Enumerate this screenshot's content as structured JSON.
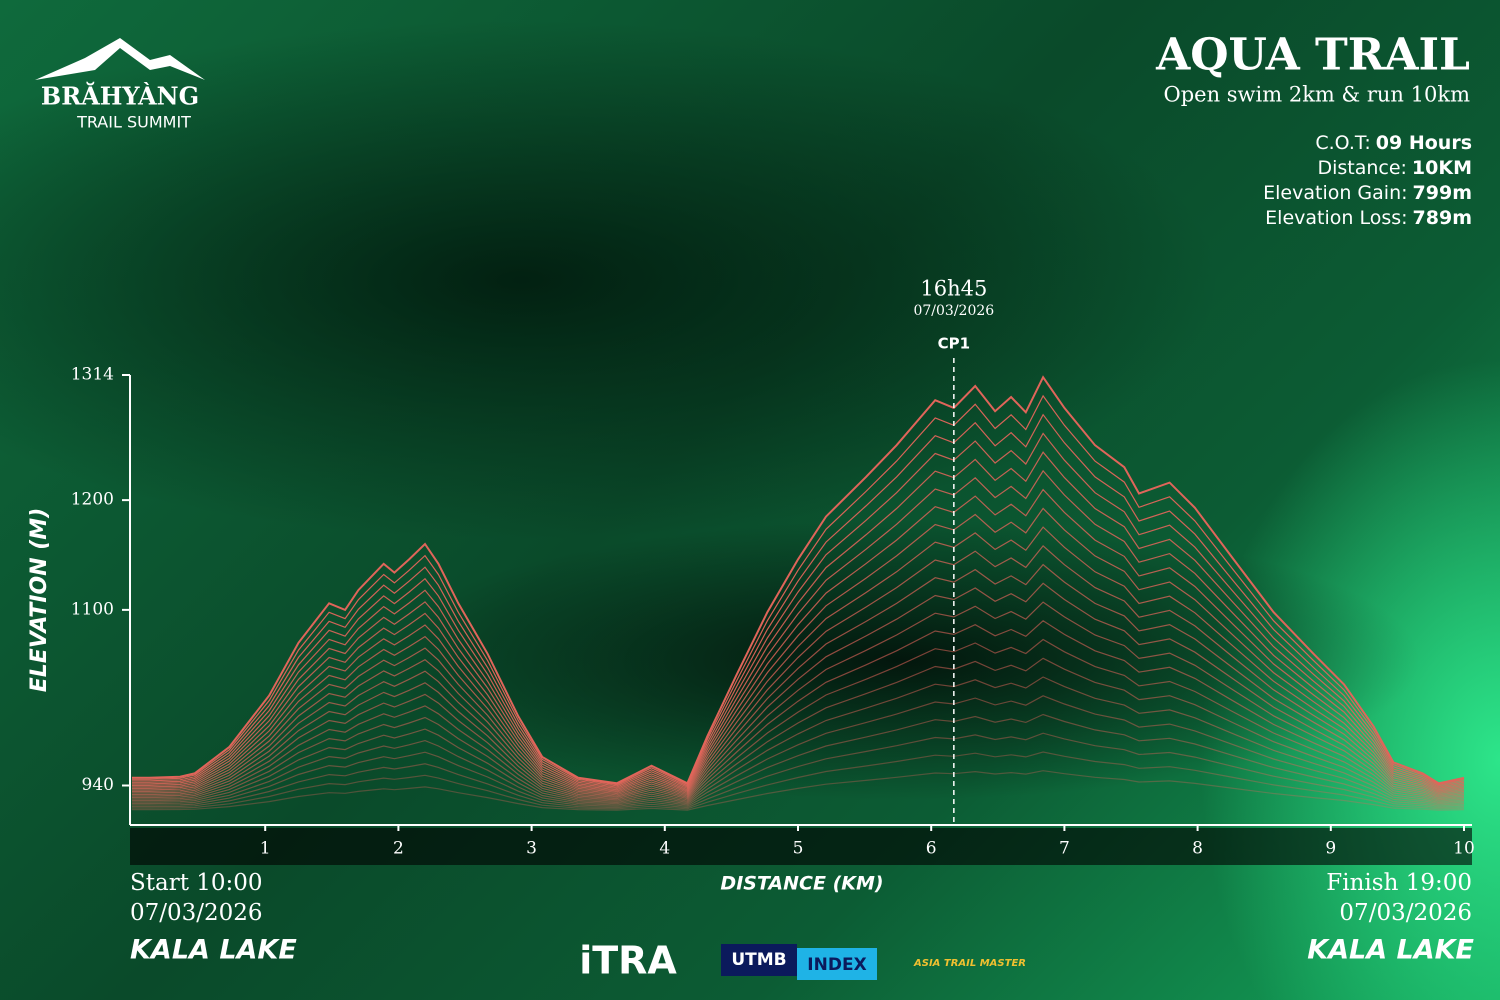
{
  "logo": {
    "name": "BRĂHYÀNG",
    "tagline": "TRAIL SUMMIT"
  },
  "race": {
    "title": "AQUA TRAIL",
    "subtitle": "Open swim 2km & run 10km",
    "stats": [
      {
        "label": "C.O.T:",
        "value": "09 Hours"
      },
      {
        "label": "Distance:",
        "value": "10KM"
      },
      {
        "label": "Elevation Gain:",
        "value": "799m"
      },
      {
        "label": "Elevation Loss:",
        "value": "789m"
      }
    ]
  },
  "start": {
    "time": "Start 10:00",
    "date": "07/03/2026",
    "place": "KALA LAKE"
  },
  "finish": {
    "time": "Finish 19:00",
    "date": "07/03/2026",
    "place": "KALA LAKE"
  },
  "partners": {
    "itra": "iTRA",
    "utmb": "UTMB",
    "index": "INDEX",
    "asia": "ASIA TRAIL MASTER"
  },
  "chart_data": {
    "type": "line",
    "x_label": "DISTANCE (KM)",
    "y_label": "ELEVATION (M)",
    "x": [
      0,
      0.13,
      0.36,
      0.47,
      0.73,
      1.03,
      1.25,
      1.48,
      1.6,
      1.7,
      1.89,
      1.97,
      2.08,
      2.2,
      2.3,
      2.45,
      2.67,
      2.9,
      3.08,
      3.35,
      3.64,
      3.9,
      4.17,
      4.32,
      4.54,
      4.77,
      5.0,
      5.21,
      5.51,
      5.74,
      6.03,
      6.17,
      6.33,
      6.48,
      6.6,
      6.71,
      6.84,
      7.0,
      7.23,
      7.45,
      7.56,
      7.79,
      7.98,
      8.27,
      8.57,
      8.87,
      9.1,
      9.32,
      9.47,
      9.69,
      9.81,
      10
    ],
    "series": [
      {
        "name": "Elevation",
        "color": "#e0655a",
        "values": [
          947,
          947,
          948,
          951,
          975,
          1022,
          1070,
          1106,
          1100,
          1118,
          1142,
          1134,
          1146,
          1160,
          1142,
          1106,
          1060,
          1003,
          966,
          947,
          942,
          958,
          942,
          985,
          1041,
          1098,
          1146,
          1185,
          1221,
          1250,
          1291,
          1284,
          1304,
          1281,
          1294,
          1280,
          1312,
          1284,
          1250,
          1230,
          1206,
          1216,
          1193,
          1146,
          1098,
          1060,
          1032,
          994,
          961,
          951,
          942,
          947
        ]
      }
    ],
    "xlim": [
      0,
      10
    ],
    "xticks": [
      1,
      2,
      3,
      4,
      5,
      6,
      7,
      8,
      9,
      10
    ],
    "ylim": [
      904,
      1314
    ],
    "yticks": [
      940,
      1100,
      1200,
      1314
    ],
    "checkpoint": {
      "x": 6.17,
      "label": "CP1",
      "time": "16h45",
      "date": "07/03/2026"
    }
  }
}
